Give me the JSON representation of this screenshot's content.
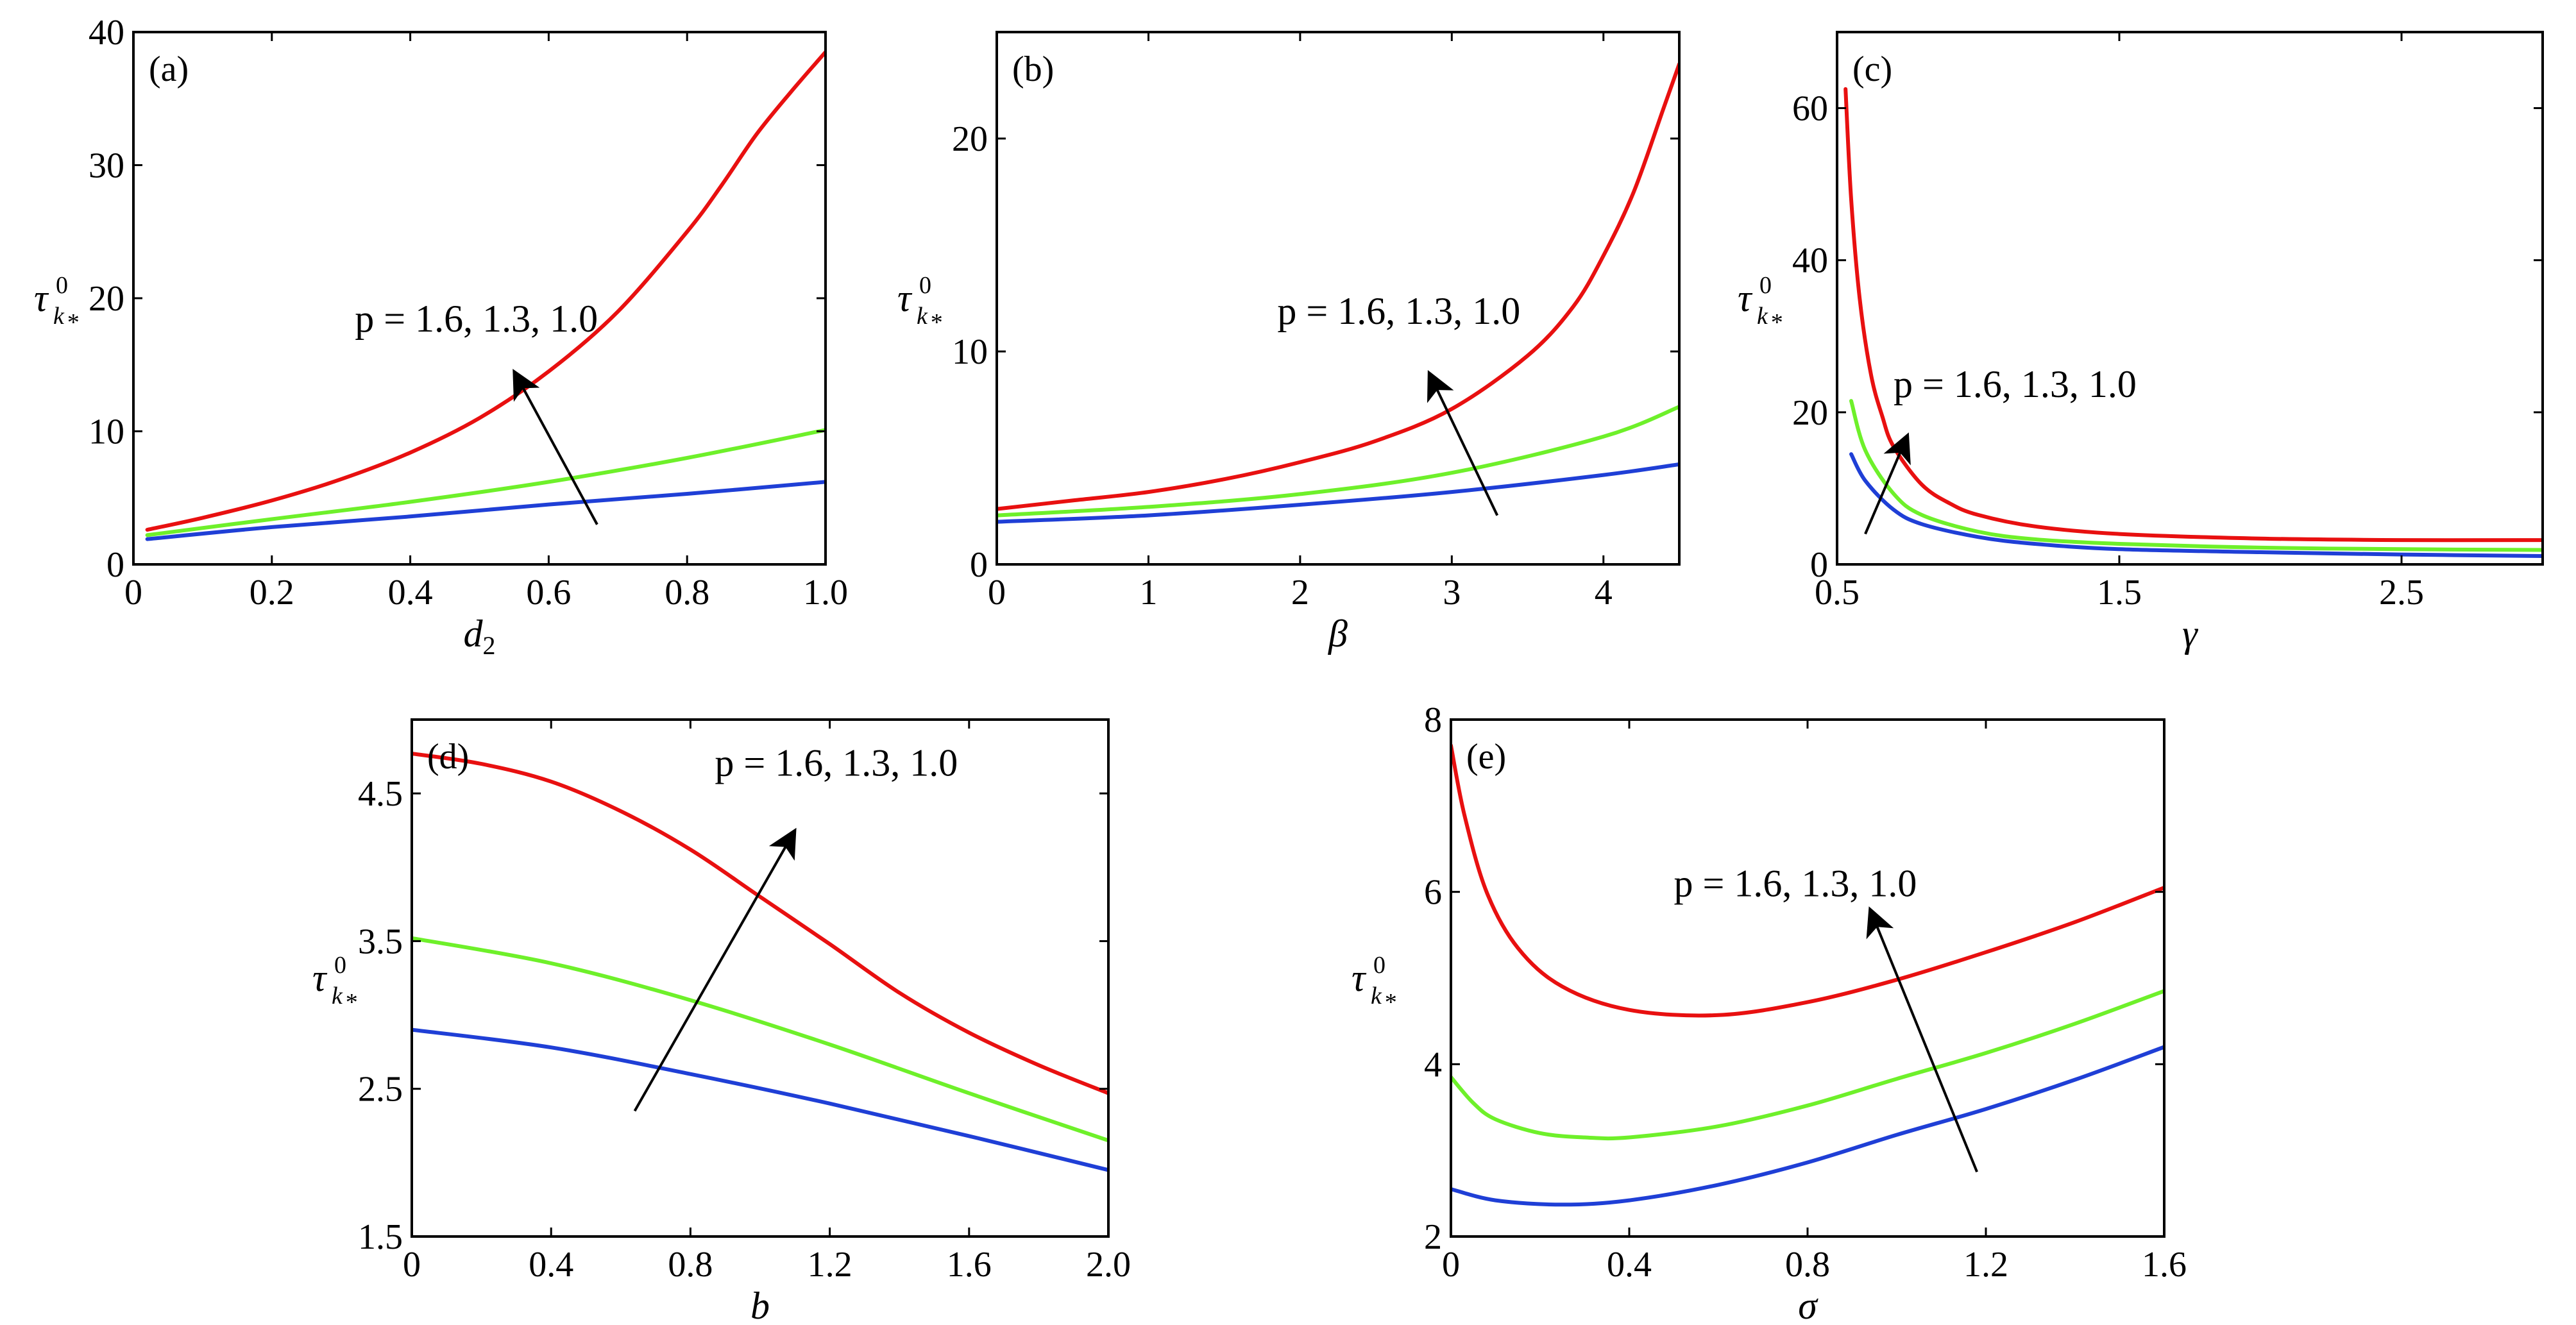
{
  "chart_data": [
    {
      "type": "line",
      "panel_label": "(a)",
      "xlabel": "d",
      "xlabel_sub": "2",
      "ylabel": "τ",
      "ylabel_sub": "k",
      "ylabel_subsub": "*",
      "ylabel_sup": "0",
      "xlim": [
        0,
        1.0
      ],
      "ylim": [
        0,
        40
      ],
      "xticks": [
        "0",
        "0.2",
        "0.4",
        "0.6",
        "0.8",
        "1.0"
      ],
      "xtick_values": [
        0,
        0.2,
        0.4,
        0.6,
        0.8,
        1.0
      ],
      "yticks": [
        "0",
        "10",
        "20",
        "30",
        "40"
      ],
      "ytick_values": [
        0,
        10,
        20,
        30,
        40
      ],
      "annotation": "p = 1.6, 1.3, 1.0",
      "arrow_from": [
        0.67,
        3
      ],
      "arrow_to": [
        0.55,
        14.5
      ],
      "annotation_at": [
        0.32,
        17.5
      ],
      "series": [
        {
          "color": "#1f3fd6",
          "x": [
            0.02,
            0.2,
            0.4,
            0.6,
            0.8,
            1.0
          ],
          "y": [
            1.9,
            2.8,
            3.6,
            4.5,
            5.3,
            6.2
          ]
        },
        {
          "color": "#6ef02a",
          "x": [
            0.02,
            0.2,
            0.4,
            0.6,
            0.8,
            1.0
          ],
          "y": [
            2.2,
            3.4,
            4.7,
            6.2,
            8.0,
            10.1
          ]
        },
        {
          "color": "#e81010",
          "x": [
            0.02,
            0.1,
            0.2,
            0.3,
            0.4,
            0.5,
            0.6,
            0.7,
            0.8,
            0.85,
            0.9,
            0.95,
            1.0
          ],
          "y": [
            2.6,
            3.5,
            4.8,
            6.4,
            8.4,
            11.0,
            14.5,
            19.0,
            25.0,
            28.5,
            32.3,
            35.5,
            38.5
          ]
        }
      ]
    },
    {
      "type": "line",
      "panel_label": "(b)",
      "xlabel": "β",
      "ylabel": "τ",
      "ylabel_sub": "k",
      "ylabel_subsub": "*",
      "ylabel_sup": "0",
      "xlim": [
        0,
        4.5
      ],
      "ylim": [
        0,
        25
      ],
      "xticks": [
        "0",
        "1",
        "2",
        "3",
        "4"
      ],
      "xtick_values": [
        0,
        1,
        2,
        3,
        4
      ],
      "yticks": [
        "0",
        "10",
        "20"
      ],
      "ytick_values": [
        0,
        10,
        20
      ],
      "annotation": "p = 1.6, 1.3, 1.0",
      "arrow_from": [
        3.3,
        2.3
      ],
      "arrow_to": [
        2.85,
        9.0
      ],
      "annotation_at": [
        1.85,
        11.3
      ],
      "series": [
        {
          "color": "#1f3fd6",
          "x": [
            0,
            1,
            2,
            3,
            4,
            4.5
          ],
          "y": [
            2.0,
            2.3,
            2.8,
            3.4,
            4.2,
            4.7
          ]
        },
        {
          "color": "#6ef02a",
          "x": [
            0,
            1,
            2,
            3,
            4,
            4.5
          ],
          "y": [
            2.3,
            2.7,
            3.3,
            4.3,
            6.0,
            7.4
          ]
        },
        {
          "color": "#e81010",
          "x": [
            0,
            0.5,
            1,
            1.5,
            2,
            2.5,
            3,
            3.5,
            3.8,
            4.0,
            4.2,
            4.4,
            4.5
          ],
          "y": [
            2.6,
            3.0,
            3.4,
            4.0,
            4.8,
            5.8,
            7.3,
            9.8,
            12.1,
            14.5,
            17.5,
            21.5,
            23.5
          ]
        }
      ]
    },
    {
      "type": "line",
      "panel_label": "(c)",
      "xlabel": "γ",
      "ylabel": "τ",
      "ylabel_sub": "k",
      "ylabel_subsub": "*",
      "ylabel_sup": "0",
      "xlim": [
        0.5,
        3.0
      ],
      "ylim": [
        0,
        70
      ],
      "xticks": [
        "0.5",
        "1.5",
        "2.5"
      ],
      "xtick_values": [
        0.5,
        1.5,
        2.5
      ],
      "yticks": [
        "0",
        "20",
        "40",
        "60"
      ],
      "ytick_values": [
        0,
        20,
        40,
        60
      ],
      "annotation": "p = 1.6, 1.3, 1.0",
      "arrow_from": [
        0.6,
        4
      ],
      "arrow_to": [
        0.75,
        17
      ],
      "annotation_at": [
        0.7,
        22
      ],
      "series": [
        {
          "color": "#1f3fd6",
          "x": [
            0.55,
            0.6,
            0.7,
            0.8,
            1.0,
            1.2,
            1.5,
            2.0,
            2.5,
            3.0
          ],
          "y": [
            14.5,
            11.0,
            7.2,
            5.3,
            3.6,
            2.7,
            2.0,
            1.6,
            1.3,
            1.1
          ]
        },
        {
          "color": "#6ef02a",
          "x": [
            0.55,
            0.6,
            0.7,
            0.8,
            1.0,
            1.2,
            1.5,
            2.0,
            2.5,
            3.0
          ],
          "y": [
            21.5,
            15.0,
            9.3,
            6.5,
            4.3,
            3.3,
            2.7,
            2.2,
            2.0,
            1.9
          ]
        },
        {
          "color": "#e81010",
          "x": [
            0.53,
            0.55,
            0.58,
            0.62,
            0.66,
            0.7,
            0.8,
            0.9,
            1.0,
            1.2,
            1.5,
            2.0,
            2.5,
            3.0
          ],
          "y": [
            62.5,
            48.0,
            35.0,
            25.0,
            19.5,
            15.5,
            10.5,
            8.0,
            6.5,
            5.0,
            4.0,
            3.4,
            3.2,
            3.2
          ]
        }
      ]
    },
    {
      "type": "line",
      "panel_label": "(d)",
      "xlabel": "b",
      "ylabel": "τ",
      "ylabel_sub": "k",
      "ylabel_subsub": "*",
      "ylabel_sup": "0",
      "xlim": [
        0,
        2.0
      ],
      "ylim": [
        1.5,
        5.0
      ],
      "xticks": [
        "0",
        "0.4",
        "0.8",
        "1.2",
        "1.6",
        "2.0"
      ],
      "xtick_values": [
        0,
        0.4,
        0.8,
        1.2,
        1.6,
        2.0
      ],
      "yticks": [
        "1.5",
        "2.5",
        "3.5",
        "4.5"
      ],
      "ytick_values": [
        1.5,
        2.5,
        3.5,
        4.5
      ],
      "annotation": "p = 1.6, 1.3, 1.0",
      "arrow_from": [
        0.64,
        2.35
      ],
      "arrow_to": [
        1.1,
        4.25
      ],
      "annotation_at": [
        0.87,
        4.62
      ],
      "series": [
        {
          "color": "#1f3fd6",
          "x": [
            0,
            0.4,
            0.8,
            1.2,
            1.6,
            2.0
          ],
          "y": [
            2.9,
            2.78,
            2.6,
            2.4,
            2.18,
            1.95
          ]
        },
        {
          "color": "#6ef02a",
          "x": [
            0,
            0.4,
            0.8,
            1.2,
            1.6,
            2.0
          ],
          "y": [
            3.52,
            3.35,
            3.1,
            2.8,
            2.47,
            2.15
          ]
        },
        {
          "color": "#e81010",
          "x": [
            0,
            0.2,
            0.4,
            0.6,
            0.8,
            1.0,
            1.2,
            1.4,
            1.6,
            1.8,
            2.0
          ],
          "y": [
            4.77,
            4.7,
            4.58,
            4.38,
            4.12,
            3.8,
            3.48,
            3.15,
            2.88,
            2.66,
            2.47
          ]
        }
      ]
    },
    {
      "type": "line",
      "panel_label": "(e)",
      "xlabel": "σ",
      "ylabel": "τ",
      "ylabel_sub": "k",
      "ylabel_subsub": "*",
      "ylabel_sup": "0",
      "xlim": [
        0,
        1.6
      ],
      "ylim": [
        2,
        8
      ],
      "xticks": [
        "0",
        "0.4",
        "0.8",
        "1.2",
        "1.6"
      ],
      "xtick_values": [
        0,
        0.4,
        0.8,
        1.2,
        1.6
      ],
      "yticks": [
        "2",
        "4",
        "6",
        "8"
      ],
      "ytick_values": [
        2,
        4,
        6,
        8
      ],
      "annotation": "p = 1.6, 1.3, 1.0",
      "arrow_from": [
        1.18,
        2.75
      ],
      "arrow_to": [
        0.94,
        5.8
      ],
      "annotation_at": [
        0.5,
        5.95
      ],
      "series": [
        {
          "color": "#1f3fd6",
          "x": [
            0,
            0.1,
            0.25,
            0.4,
            0.6,
            0.8,
            1.0,
            1.2,
            1.4,
            1.6
          ],
          "y": [
            2.55,
            2.42,
            2.37,
            2.42,
            2.6,
            2.86,
            3.18,
            3.48,
            3.82,
            4.2
          ]
        },
        {
          "color": "#6ef02a",
          "x": [
            0,
            0.05,
            0.1,
            0.2,
            0.3,
            0.4,
            0.6,
            0.8,
            1.0,
            1.2,
            1.4,
            1.6
          ],
          "y": [
            3.85,
            3.55,
            3.36,
            3.2,
            3.15,
            3.15,
            3.28,
            3.52,
            3.83,
            4.13,
            4.47,
            4.85
          ]
        },
        {
          "color": "#e81010",
          "x": [
            0,
            0.03,
            0.08,
            0.15,
            0.25,
            0.4,
            0.6,
            0.8,
            1.0,
            1.2,
            1.4,
            1.6
          ],
          "y": [
            7.7,
            6.9,
            6.0,
            5.35,
            4.9,
            4.63,
            4.57,
            4.72,
            4.98,
            5.3,
            5.65,
            6.05
          ]
        }
      ]
    }
  ]
}
